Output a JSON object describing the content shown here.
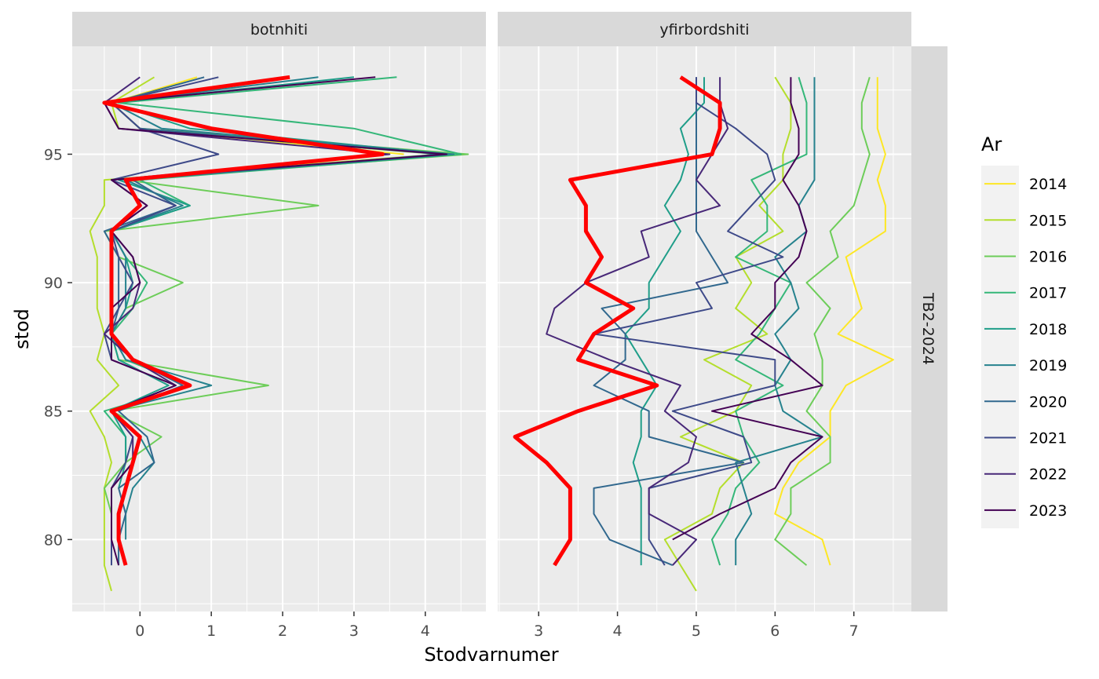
{
  "chart_data": {
    "type": "line",
    "xlabel": "Stodvarnumer",
    "ylabel": "stod",
    "strip_right": "TB2-2024",
    "legend_title": "Ar",
    "legend_position": "right",
    "grid": true,
    "ylim": [
      77.2,
      99.2
    ],
    "yticks": [
      80,
      85,
      90,
      95
    ],
    "colors": {
      "2014": "#FDE725",
      "2015": "#B4DE2C",
      "2016": "#6DCD59",
      "2017": "#35B779",
      "2018": "#1F9E89",
      "2019": "#26828E",
      "2020": "#31688E",
      "2021": "#3E4A89",
      "2022": "#482878",
      "2023": "#440154",
      "2024": "#FF0000"
    },
    "legend": [
      "2014",
      "2015",
      "2016",
      "2017",
      "2018",
      "2019",
      "2020",
      "2021",
      "2022",
      "2023"
    ],
    "panels": [
      {
        "title": "botnhiti",
        "xlim": [
          -0.95,
          4.85
        ],
        "xticks": [
          0,
          1,
          2,
          3,
          4
        ],
        "series": [
          {
            "year": "2014",
            "stod": [
              95,
              96,
              97,
              98
            ],
            "x": [
              3.7,
              0.0,
              -0.4,
              0.8
            ]
          },
          {
            "year": "2015",
            "stod": [
              78,
              79,
              80,
              81,
              82,
              83,
              84,
              85,
              86,
              87,
              88,
              89,
              90,
              91,
              92,
              93,
              94,
              95,
              96,
              97,
              98
            ],
            "x": [
              -0.4,
              -0.5,
              -0.5,
              -0.5,
              -0.5,
              -0.4,
              -0.5,
              -0.7,
              -0.3,
              -0.6,
              -0.5,
              -0.6,
              -0.6,
              -0.6,
              -0.7,
              -0.5,
              -0.5,
              4.2,
              -0.3,
              -0.4,
              0.2
            ]
          },
          {
            "year": "2016",
            "stod": [
              79,
              80,
              81,
              82,
              83,
              84,
              85,
              86,
              87,
              88,
              89,
              90,
              91,
              92,
              93,
              94,
              95,
              96,
              97
            ],
            "x": [
              -0.4,
              -0.4,
              -0.4,
              -0.5,
              -0.2,
              0.3,
              -0.4,
              1.8,
              -0.3,
              -0.4,
              -0.2,
              0.6,
              -0.3,
              -0.5,
              2.5,
              -0.2,
              4.6,
              0.0,
              -0.4
            ]
          },
          {
            "year": "2017",
            "stod": [
              83,
              84,
              85,
              86,
              87,
              88,
              89,
              90,
              91,
              92,
              93,
              94,
              95,
              96,
              97,
              98
            ],
            "x": [
              -0.2,
              -0.2,
              -0.5,
              0.7,
              -0.2,
              -0.4,
              -0.1,
              0.1,
              -0.2,
              -0.4,
              0.7,
              0.0,
              4.5,
              3.0,
              -0.3,
              3.6
            ]
          },
          {
            "year": "2018",
            "stod": [
              82,
              83,
              84,
              85,
              86,
              87,
              88,
              89,
              90,
              91,
              92,
              93,
              94,
              95,
              96,
              97,
              98
            ],
            "x": [
              -0.3,
              -0.2,
              -0.2,
              -0.4,
              0.4,
              -0.3,
              -0.4,
              -0.2,
              -0.1,
              -0.2,
              -0.4,
              0.7,
              -0.3,
              4.3,
              0.7,
              -0.4,
              3.0
            ]
          },
          {
            "year": "2019",
            "stod": [
              80,
              81,
              82,
              83,
              84,
              85,
              86,
              87,
              88,
              89,
              90,
              91,
              92,
              93,
              94,
              95,
              96,
              97,
              98
            ],
            "x": [
              -0.2,
              -0.2,
              -0.1,
              0.2,
              0.0,
              -0.4,
              1.0,
              -0.2,
              -0.4,
              -0.2,
              -0.2,
              -0.2,
              -0.4,
              0.6,
              -0.2,
              4.4,
              0.3,
              -0.4,
              2.5
            ]
          },
          {
            "year": "2020",
            "stod": [
              79,
              80,
              81,
              82,
              83,
              84,
              85,
              86,
              87,
              88,
              89,
              90,
              91,
              92,
              93,
              94,
              95,
              96,
              97,
              98
            ],
            "x": [
              -0.3,
              -0.3,
              -0.2,
              -0.3,
              0.2,
              0.1,
              -0.3,
              0.6,
              -0.1,
              -0.4,
              -0.3,
              -0.3,
              -0.3,
              -0.5,
              0.5,
              -0.1,
              4.2,
              0.0,
              -0.4,
              0.9
            ]
          },
          {
            "year": "2021",
            "stod": [
              79,
              80,
              81,
              82,
              83,
              84,
              85,
              86,
              87,
              88,
              89,
              90,
              91,
              92,
              93,
              94,
              95,
              96,
              97,
              98
            ],
            "x": [
              -0.4,
              -0.4,
              -0.4,
              -0.4,
              -0.2,
              -0.1,
              -0.4,
              0.5,
              -0.4,
              -0.5,
              -0.3,
              -0.1,
              -0.3,
              -0.4,
              0.5,
              -0.4,
              1.1,
              0.0,
              -0.4,
              1.1
            ]
          },
          {
            "year": "2022",
            "stod": [
              80,
              81,
              82,
              83,
              84,
              85,
              86,
              87,
              88,
              89,
              90,
              91,
              92,
              93,
              94,
              95,
              96,
              97,
              98
            ],
            "x": [
              -0.4,
              -0.4,
              -0.4,
              -0.1,
              -0.1,
              -0.4,
              0.5,
              -0.1,
              -0.5,
              -0.1,
              0.0,
              -0.1,
              -0.4,
              0.1,
              -0.4,
              3.5,
              -0.3,
              -0.5,
              0.0
            ]
          },
          {
            "year": "2023",
            "stod": [
              79,
              80,
              81,
              82,
              83,
              84,
              85,
              86,
              87,
              88,
              89,
              90,
              91,
              92,
              93,
              94,
              95,
              96,
              97,
              98
            ],
            "x": [
              -0.3,
              -0.4,
              -0.4,
              -0.4,
              -0.1,
              0.0,
              -0.4,
              0.5,
              -0.4,
              -0.4,
              -0.4,
              0.0,
              -0.1,
              -0.4,
              0.1,
              -0.4,
              4.3,
              -0.3,
              -0.5,
              3.3
            ]
          },
          {
            "year": "2024",
            "stod": [
              79,
              80,
              81,
              82,
              83,
              84,
              85,
              86,
              87,
              88,
              89,
              90,
              91,
              92,
              93,
              94,
              95,
              96,
              97,
              98
            ],
            "x": [
              -0.2,
              -0.3,
              -0.3,
              -0.2,
              -0.1,
              0.0,
              -0.4,
              0.7,
              -0.1,
              -0.4,
              -0.4,
              -0.4,
              -0.4,
              -0.4,
              0.0,
              -0.2,
              3.4,
              1.0,
              -0.5,
              2.1
            ]
          }
        ]
      },
      {
        "title": "yfirbordshiti",
        "xlim": [
          2.48,
          7.73
        ],
        "xticks": [
          3,
          4,
          5,
          6,
          7
        ],
        "series": [
          {
            "year": "2014",
            "stod": [
              79,
              80,
              81,
              82,
              83,
              84,
              85,
              86,
              87,
              88,
              89,
              90,
              91,
              92,
              93,
              94,
              95,
              96,
              97,
              98
            ],
            "x": [
              6.7,
              6.6,
              6.0,
              6.1,
              6.3,
              6.7,
              6.7,
              6.9,
              7.5,
              6.8,
              7.1,
              7.0,
              6.9,
              7.4,
              7.4,
              7.3,
              7.4,
              7.3,
              7.3,
              7.3
            ]
          },
          {
            "year": "2015",
            "stod": [
              78,
              79,
              80,
              81,
              82,
              83,
              84,
              85,
              86,
              87,
              88,
              89,
              90,
              91,
              92,
              93,
              94,
              95,
              96,
              97,
              98
            ],
            "x": [
              5.0,
              4.8,
              4.6,
              5.2,
              5.3,
              5.6,
              4.8,
              5.5,
              5.7,
              5.1,
              5.9,
              5.5,
              5.7,
              5.5,
              6.1,
              5.8,
              6.1,
              6.1,
              6.2,
              6.2,
              6.0
            ]
          },
          {
            "year": "2016",
            "stod": [
              79,
              80,
              81,
              82,
              83,
              84,
              85,
              86,
              87,
              88,
              89,
              90,
              91,
              92,
              93,
              94,
              95,
              96,
              97,
              98
            ],
            "x": [
              6.4,
              6.0,
              6.2,
              6.2,
              6.7,
              6.7,
              6.4,
              6.6,
              6.6,
              6.5,
              6.7,
              6.4,
              6.8,
              6.7,
              7.0,
              7.1,
              7.2,
              7.1,
              7.1,
              7.2
            ]
          },
          {
            "year": "2017",
            "stod": [
              79,
              80,
              81,
              82,
              83,
              84,
              85,
              86,
              87,
              88,
              89,
              90,
              91,
              92,
              93,
              94,
              95,
              96,
              97,
              98
            ],
            "x": [
              5.3,
              5.2,
              5.4,
              5.5,
              5.8,
              5.6,
              5.5,
              6.1,
              5.5,
              5.8,
              6.0,
              6.2,
              5.5,
              5.9,
              5.9,
              5.7,
              6.4,
              6.4,
              6.4,
              6.3
            ]
          },
          {
            "year": "2018",
            "stod": [
              79,
              80,
              81,
              82,
              83,
              84,
              85,
              86,
              87,
              88,
              89,
              90,
              91,
              92,
              93,
              94,
              95,
              96,
              97,
              98
            ],
            "x": [
              4.3,
              4.3,
              4.3,
              4.3,
              4.2,
              4.3,
              4.3,
              4.5,
              4.3,
              4.1,
              4.4,
              4.4,
              4.6,
              4.8,
              4.6,
              4.8,
              4.9,
              4.8,
              5.1,
              5.1
            ]
          },
          {
            "year": "2019",
            "stod": [
              79,
              80,
              81,
              82,
              83,
              84,
              85,
              86,
              87,
              88,
              89,
              90,
              91,
              92,
              93,
              94,
              95,
              96,
              97,
              98
            ],
            "x": [
              5.5,
              5.5,
              5.7,
              5.6,
              5.5,
              6.6,
              6.1,
              6.0,
              6.2,
              6.0,
              6.3,
              6.2,
              6.0,
              6.4,
              6.3,
              6.5,
              6.5,
              6.5,
              6.5,
              6.5
            ]
          },
          {
            "year": "2020",
            "stod": [
              79,
              80,
              81,
              82,
              83,
              84,
              85,
              86,
              87,
              88,
              89,
              90,
              91,
              92,
              93,
              94,
              95,
              96,
              97,
              98
            ],
            "x": [
              4.7,
              3.9,
              3.7,
              3.7,
              5.6,
              4.4,
              4.4,
              3.7,
              4.1,
              4.1,
              3.8,
              5.4,
              5.2,
              5.0,
              5.0,
              5.0,
              5.0,
              5.0,
              5.0,
              5.0
            ]
          },
          {
            "year": "2021",
            "stod": [
              79,
              80,
              81,
              82,
              83,
              84,
              85,
              86,
              87,
              88,
              89,
              90,
              91,
              92,
              93,
              94,
              95,
              96,
              97,
              98
            ],
            "x": [
              4.6,
              4.4,
              4.4,
              4.4,
              5.7,
              5.6,
              4.7,
              6.0,
              6.0,
              3.7,
              5.2,
              5.0,
              6.1,
              5.4,
              5.7,
              6.0,
              5.9,
              5.5,
              5.0,
              5.0
            ]
          },
          {
            "year": "2022",
            "stod": [
              79,
              80,
              81,
              82,
              83,
              84,
              85,
              86,
              87,
              88,
              89,
              90,
              91,
              92,
              93,
              94,
              95,
              96,
              97,
              98
            ],
            "x": [
              4.7,
              5.0,
              4.4,
              4.4,
              4.9,
              5.0,
              4.6,
              4.8,
              3.9,
              3.1,
              3.2,
              3.6,
              4.4,
              4.3,
              5.3,
              5.0,
              5.2,
              5.4,
              5.3,
              5.3
            ]
          },
          {
            "year": "2023",
            "stod": [
              80,
              81,
              82,
              83,
              84,
              85,
              86,
              87,
              88,
              89,
              90,
              91,
              92,
              93,
              94,
              95,
              96,
              97,
              98
            ],
            "x": [
              4.7,
              5.3,
              6.0,
              6.2,
              6.6,
              5.2,
              6.6,
              6.2,
              5.7,
              6.0,
              6.0,
              6.3,
              6.4,
              6.3,
              6.1,
              6.3,
              6.3,
              6.2,
              6.2
            ]
          },
          {
            "year": "2024",
            "stod": [
              79,
              80,
              81,
              82,
              83,
              84,
              85,
              86,
              87,
              88,
              89,
              90,
              91,
              92,
              93,
              94,
              95,
              96,
              97,
              98
            ],
            "x": [
              3.2,
              3.4,
              3.4,
              3.4,
              3.1,
              2.7,
              3.5,
              4.5,
              3.5,
              3.7,
              4.2,
              3.6,
              3.8,
              3.6,
              3.6,
              3.4,
              5.2,
              5.3,
              5.3,
              4.8
            ]
          }
        ]
      }
    ]
  }
}
